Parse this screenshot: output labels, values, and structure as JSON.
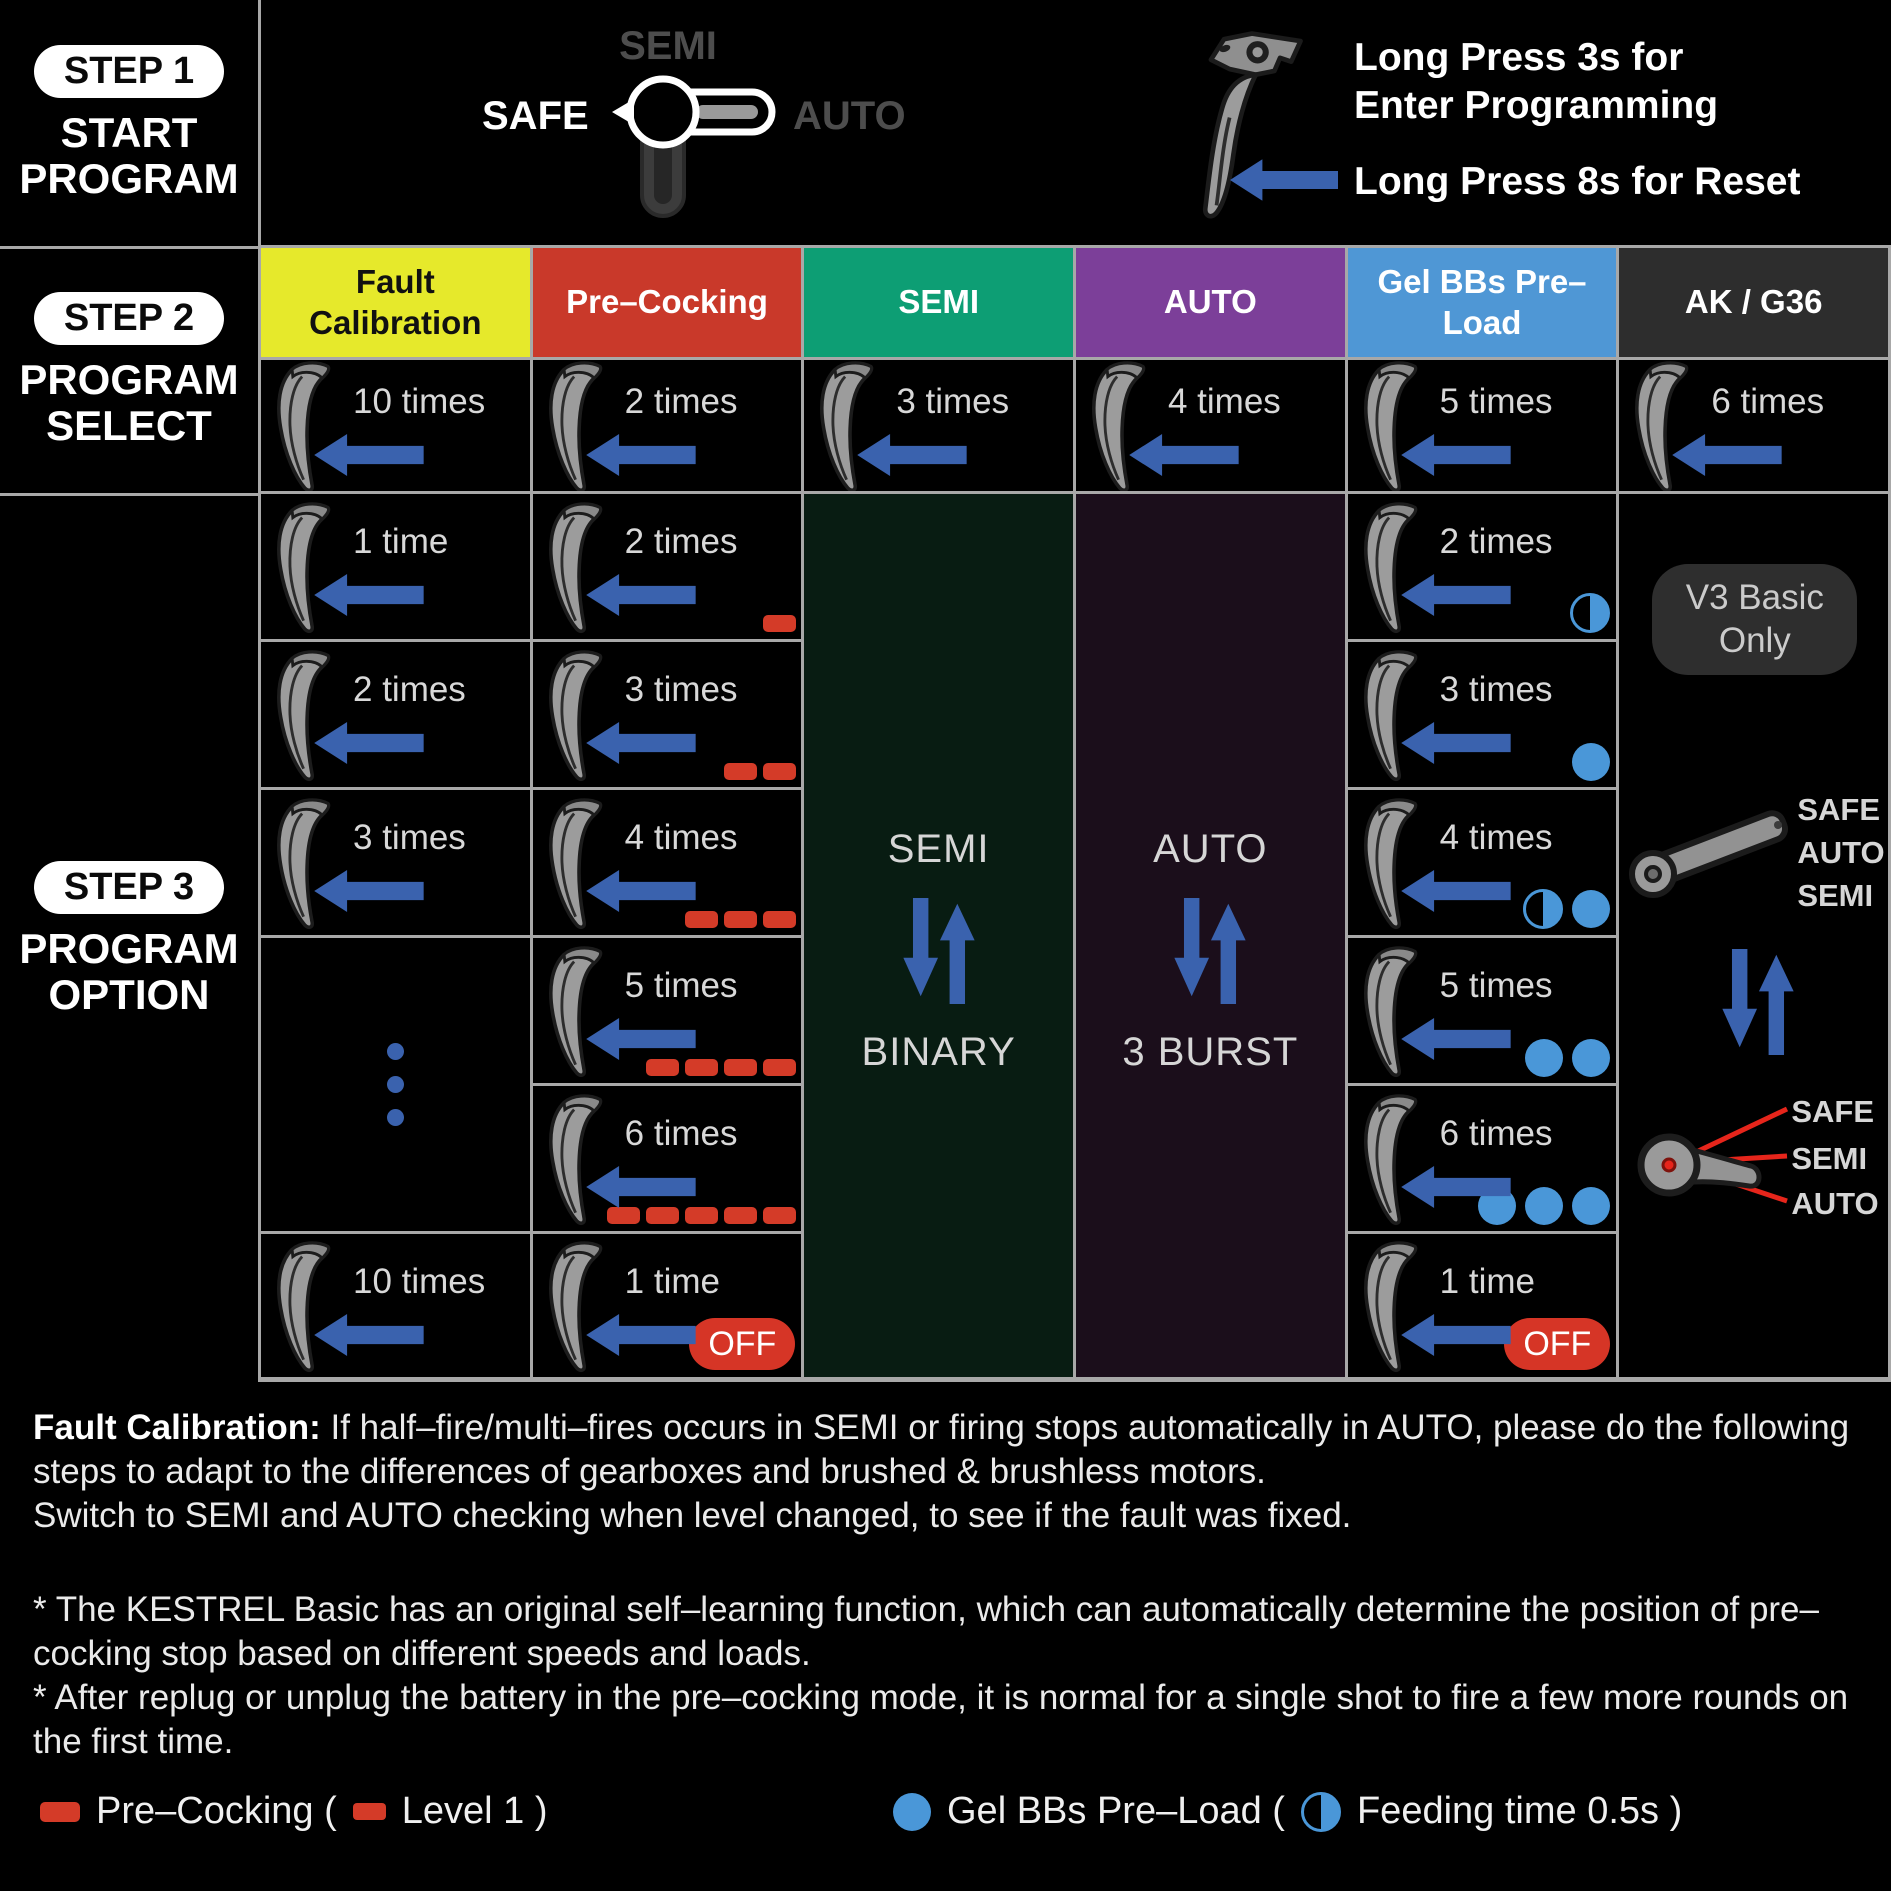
{
  "sidebar": {
    "step1": {
      "badge": "STEP 1",
      "line1": "START",
      "line2": "PROGRAM"
    },
    "step2": {
      "badge": "STEP 2",
      "line1": "PROGRAM",
      "line2": "SELECT"
    },
    "step3": {
      "badge": "STEP 3",
      "line1": "PROGRAM",
      "line2": "OPTION"
    }
  },
  "top_bar": {
    "selector": {
      "semi": "SEMI",
      "safe": "SAFE",
      "auto": "AUTO"
    },
    "instructions": {
      "enter_line1": "Long Press 3s for",
      "enter_line2": "Enter Programming",
      "reset": "Long Press 8s for Reset"
    }
  },
  "colors": {
    "fault_header": "#e6e92b",
    "precocking_header": "#c9392a",
    "semi_header": "#0d9e74",
    "auto_header": "#7c3f99",
    "gel_header": "#4f97d5",
    "ak_header": "#2d2d2d",
    "arrow_blue": "#3a62ae",
    "dash_red": "#d43b28",
    "gel_dot_blue": "#4a97d8",
    "pointer_red": "#e6251b"
  },
  "table": {
    "headers": {
      "fault": "Fault Calibration",
      "precocking": "Pre–Cocking",
      "semi": "SEMI",
      "auto": "AUTO",
      "gel": "Gel BBs Pre–Load",
      "ak": "AK / G36"
    },
    "select_row": {
      "fault": "10 times",
      "precocking": "2 times",
      "semi": "3 times",
      "auto": "4 times",
      "gel": "5 times",
      "ak": "6 times"
    },
    "fault_options": {
      "o1": "1 time",
      "o2": "2 times",
      "o3": "3 times",
      "o6": "10 times"
    },
    "precocking_options": {
      "o1": {
        "label": "2 times",
        "dashes": 1
      },
      "o2": {
        "label": "3 times",
        "dashes": 2
      },
      "o3": {
        "label": "4 times",
        "dashes": 3
      },
      "o4": {
        "label": "5 times",
        "dashes": 4
      },
      "o5": {
        "label": "6 times",
        "dashes": 5
      },
      "o6": {
        "label": "1 time",
        "badge": "OFF"
      }
    },
    "semi_option": {
      "from": "SEMI",
      "to": "BINARY"
    },
    "auto_option": {
      "from": "AUTO",
      "to": "3 BURST"
    },
    "gel_options": {
      "o1": {
        "label": "2 times",
        "icons": "half"
      },
      "o2": {
        "label": "3 times",
        "icons": "full"
      },
      "o3": {
        "label": "4 times",
        "icons": "half,full"
      },
      "o4": {
        "label": "5 times",
        "icons": "full,full"
      },
      "o5": {
        "label": "6 times",
        "icons": "full,full,full"
      },
      "o6": {
        "label": "1 time",
        "badge": "OFF"
      }
    },
    "ak_option": {
      "note_line1": "V3 Basic",
      "note_line2": "Only",
      "selector1": {
        "pos1": "SAFE",
        "pos2": "AUTO",
        "pos3": "SEMI"
      },
      "selector2": {
        "pos1": "SAFE",
        "pos2": "SEMI",
        "pos3": "AUTO"
      }
    }
  },
  "footnotes": {
    "fault_bold": "Fault Calibration:",
    "fault_rest": " If half–fire/multi–fires occurs in SEMI or firing stops automatically in AUTO, please do the following steps to adapt to the differences of gearboxes and brushed & brushless motors.",
    "fault_line2": "Switch to SEMI and AUTO checking when level changed, to see if the fault was fixed.",
    "note1": "* The KESTREL Basic has an original self–learning function, which can automatically determine the position of pre–cocking stop based on different speeds and loads.",
    "note2": "* After replug or unplug the battery in the pre–cocking mode, it is normal for a single shot to fire a few more rounds on the first time."
  },
  "legend": {
    "precocking_label": "Pre–Cocking (",
    "precocking_suffix": "Level 1 )",
    "gel_label": "Gel BBs Pre–Load  (",
    "gel_suffix": "Feeding time 0.5s )"
  }
}
